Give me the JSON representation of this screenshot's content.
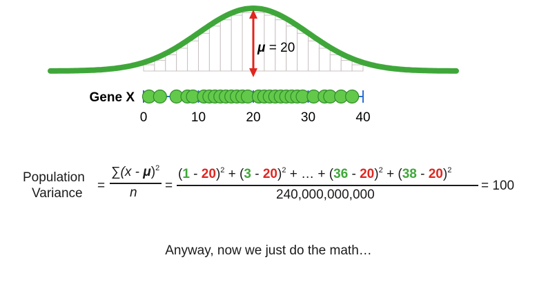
{
  "diagram": {
    "gene_label": "Gene X",
    "axis_ticks": [
      "0",
      "10",
      "20",
      "30",
      "40"
    ],
    "mean_label": {
      "symbol": "μ",
      "text": " = 20"
    },
    "data_points": [
      1,
      3,
      6,
      8,
      9,
      11,
      12,
      13,
      14,
      15,
      16,
      17,
      18,
      19,
      21,
      22,
      23,
      24,
      25,
      26,
      27,
      28,
      29,
      31,
      33,
      34,
      36,
      38
    ],
    "colors": {
      "curve": "#3fa73a",
      "points": "#63c94a",
      "arrow": "#e0261f",
      "axis": "#2b6ecf"
    }
  },
  "formula": {
    "label_line1": "Population",
    "label_line2": "Variance",
    "eq1": "=",
    "eq2": "=",
    "sigma": "∑",
    "num_open": "(x - ",
    "mu": "μ",
    "num_close": ")",
    "power": "2",
    "denom_n": "n",
    "terms": [
      {
        "open": "(",
        "x": "1",
        "minus": " - ",
        "mu": "20",
        "close": ")",
        "sep": " + "
      },
      {
        "open": "(",
        "x": "3",
        "minus": " - ",
        "mu": "20",
        "close": ")",
        "sep": " + … + "
      },
      {
        "open": "(",
        "x": "36",
        "minus": " - ",
        "mu": "20",
        "close": ")",
        "sep": " + "
      },
      {
        "open": "(",
        "x": "38",
        "minus": " - ",
        "mu": "20",
        "close": ")",
        "sep": ""
      }
    ],
    "denominator": "240,000,000,000",
    "result": "= 100"
  },
  "caption": "Anyway, now we just do the math…"
}
